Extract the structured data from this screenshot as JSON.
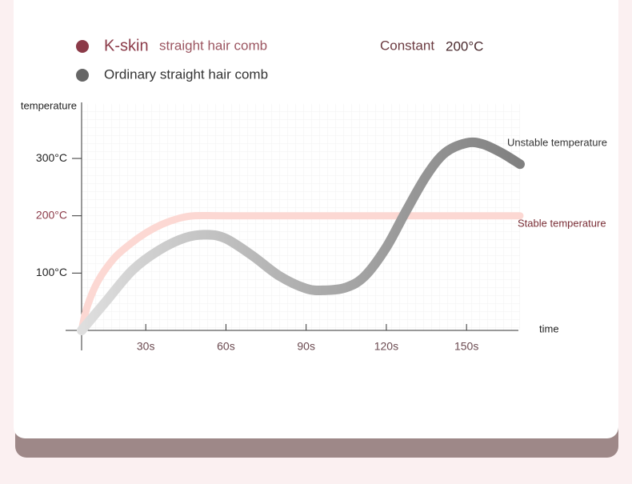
{
  "chart_data": {
    "type": "line",
    "legend_items": [
      {
        "brand": "K-skin",
        "name": "straight hair comb",
        "color": "#8b3a48"
      },
      {
        "name": "Ordinary straight hair comb",
        "color": "#666666"
      }
    ],
    "note_label": "Constant",
    "note_value": "200°C",
    "ylabel": "temperature",
    "xlabel": "time",
    "annotations": [
      "Unstable temperature",
      "Stable temperature"
    ],
    "xlim": [
      6,
      170
    ],
    "ylim": [
      0,
      395
    ],
    "xticks": [
      {
        "value": 30,
        "label": "30s"
      },
      {
        "value": 60,
        "label": "60s"
      },
      {
        "value": 90,
        "label": "90s"
      },
      {
        "value": 120,
        "label": "120s"
      },
      {
        "value": 150,
        "label": "150s"
      }
    ],
    "yticks": [
      {
        "value": 100,
        "label": "100°C"
      },
      {
        "value": 200,
        "label": "200°C"
      },
      {
        "value": 300,
        "label": "300°C"
      }
    ],
    "series": [
      {
        "name": "K-skin straight hair comb",
        "color": "#fcd8d3",
        "x": [
          6,
          8,
          12,
          18,
          24,
          30,
          36,
          42,
          48,
          60,
          90,
          120,
          150,
          170
        ],
        "values": [
          0,
          40,
          85,
          125,
          150,
          170,
          185,
          195,
          200,
          200,
          200,
          200,
          200,
          200
        ]
      },
      {
        "name": "Ordinary straight hair comb",
        "color": "#808080",
        "x": [
          6,
          15,
          25,
          35,
          45,
          53,
          60,
          70,
          80,
          90,
          97,
          105,
          112,
          120,
          127,
          135,
          142,
          150,
          156,
          163,
          170
        ],
        "values": [
          0,
          50,
          105,
          140,
          162,
          167,
          160,
          130,
          95,
          73,
          70,
          75,
          95,
          145,
          205,
          270,
          310,
          327,
          325,
          310,
          290
        ]
      }
    ]
  }
}
